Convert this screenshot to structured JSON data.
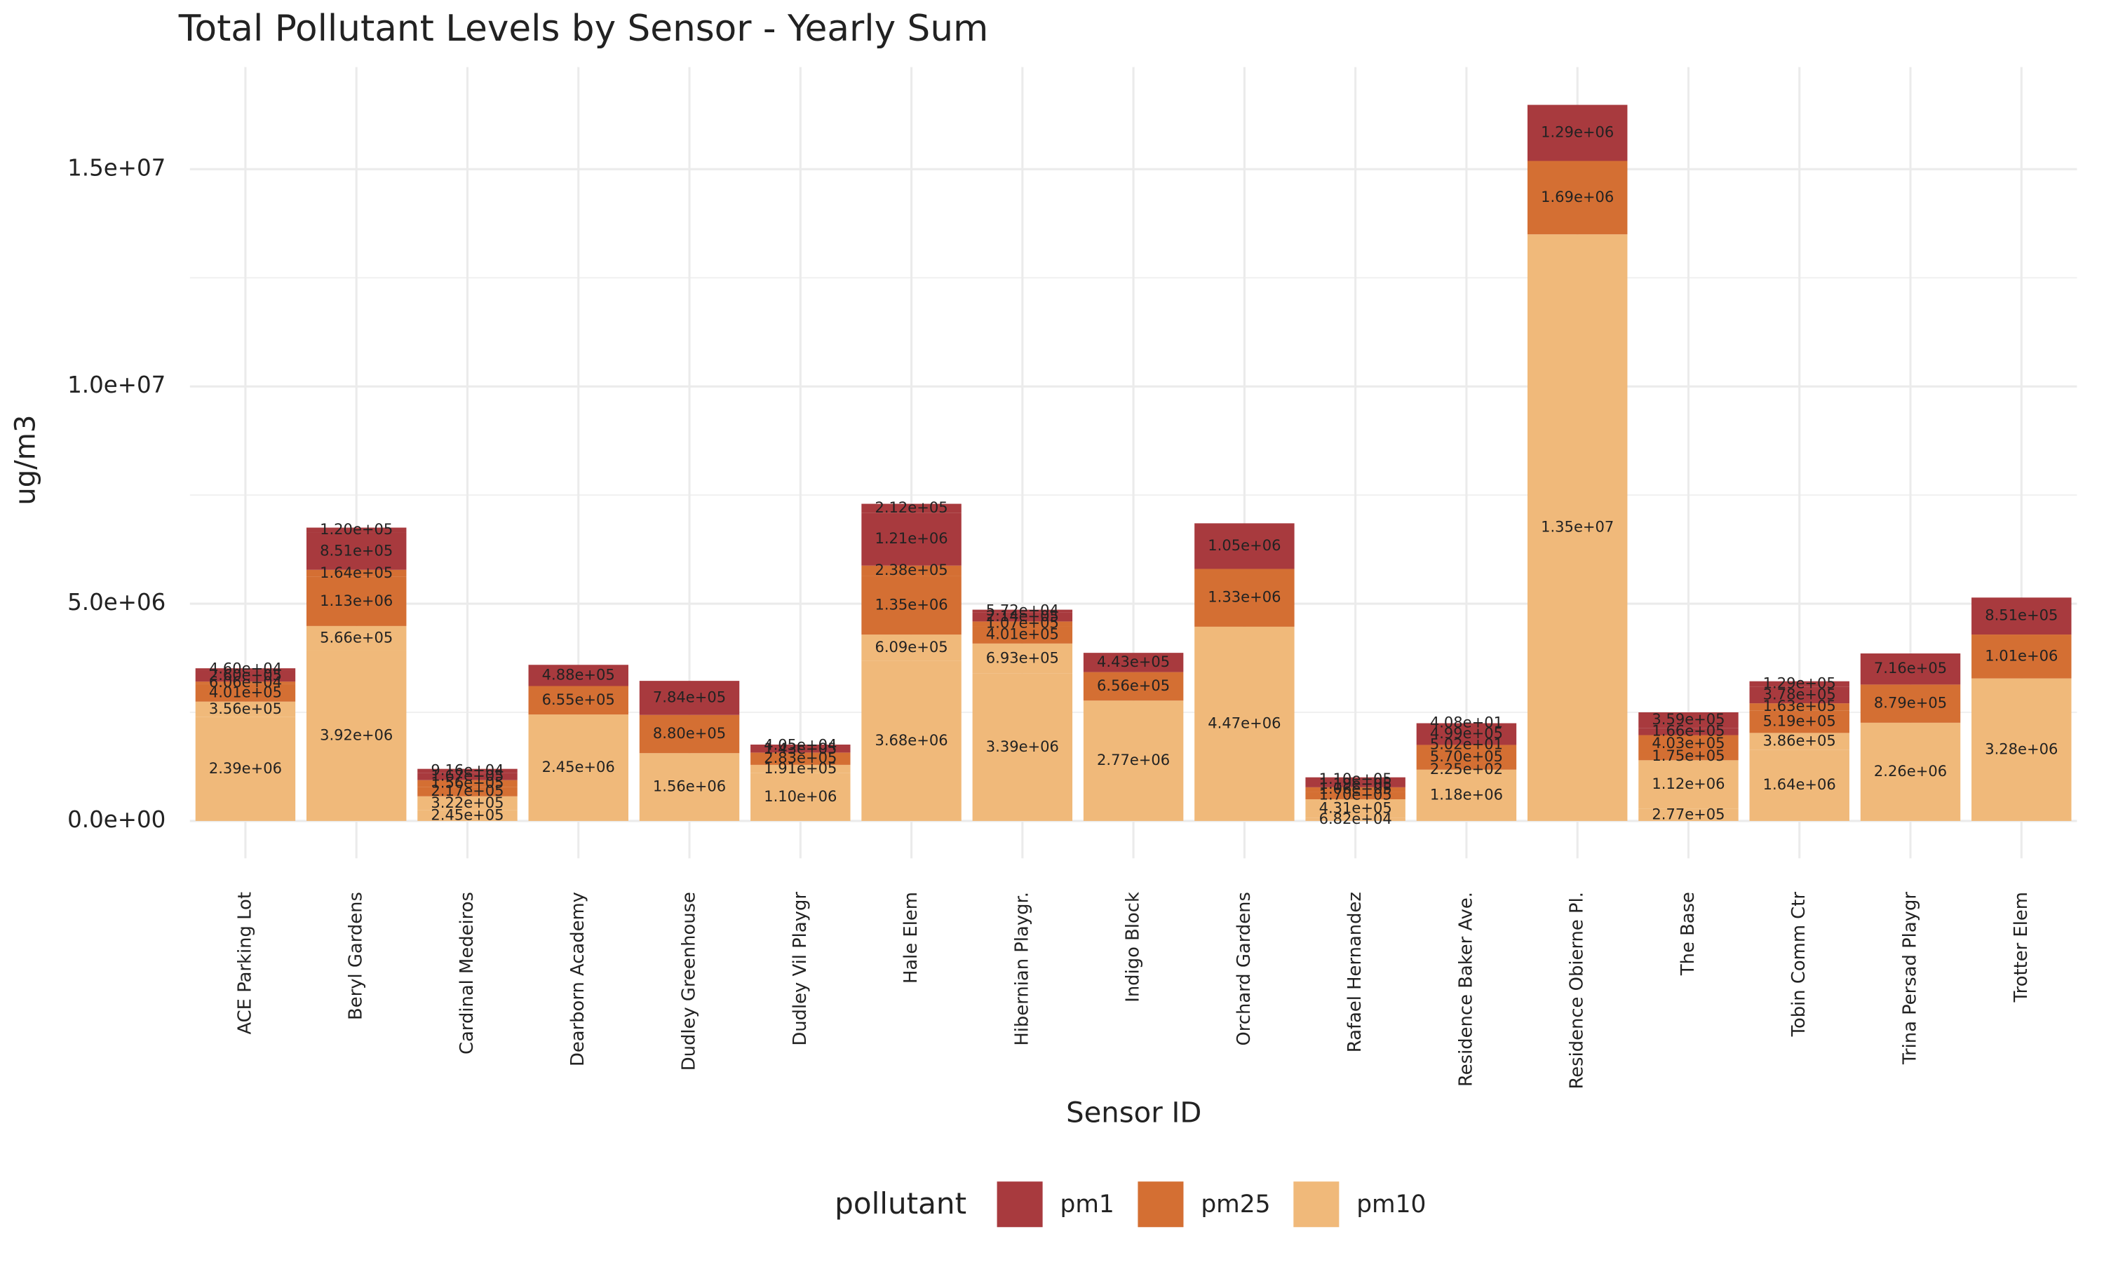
{
  "chart_data": {
    "type": "stacked_bar",
    "title": "Total Pollutant Levels by Sensor - Yearly Sum",
    "x_label": "Sensor ID",
    "y_label": "ug/m3",
    "legend_title": "pollutant",
    "series": [
      {
        "name": "pm1",
        "color": "#a83a3e"
      },
      {
        "name": "pm25",
        "color": "#d46f33"
      },
      {
        "name": "pm10",
        "color": "#f0b97a"
      }
    ],
    "categories": [
      "ACE Parking Lot",
      "Beryl Gardens",
      "Cardinal Medeiros",
      "Dearborn Academy",
      "Dudley Greenhouse",
      "Dudley Vil Playgr",
      "Hale Elem",
      "Hibernian Playgr.",
      "Indigo Block",
      "Orchard Gardens",
      "Rafael Hernandez",
      "Residence Baker Ave.",
      "Residence Obierne Pl.",
      "The Base",
      "Tobin Comm Ctr",
      "Trina Persad Playgr",
      "Trotter Elem"
    ],
    "stacks": [
      [
        {
          "pollutant": "pm10",
          "value": 2390000,
          "label": "2.39e+06"
        },
        {
          "pollutant": "pm10",
          "value": 356000,
          "label": "3.56e+05"
        },
        {
          "pollutant": "pm25",
          "value": 401000,
          "label": "4.01e+05"
        },
        {
          "pollutant": "pm25",
          "value": 60600,
          "label": "6.06e+04"
        },
        {
          "pollutant": "pm1",
          "value": 260000,
          "label": "2.60e+05"
        },
        {
          "pollutant": "pm1",
          "value": 46000,
          "label": "4.60e+04"
        }
      ],
      [
        {
          "pollutant": "pm10",
          "value": 3920000,
          "label": "3.92e+06"
        },
        {
          "pollutant": "pm10",
          "value": 566000,
          "label": "5.66e+05"
        },
        {
          "pollutant": "pm25",
          "value": 1130000,
          "label": "1.13e+06"
        },
        {
          "pollutant": "pm25",
          "value": 164000,
          "label": "1.64e+05"
        },
        {
          "pollutant": "pm1",
          "value": 851000,
          "label": "8.51e+05"
        },
        {
          "pollutant": "pm1",
          "value": 120000,
          "label": "1.20e+05"
        }
      ],
      [
        {
          "pollutant": "pm10",
          "value": 245000,
          "label": "2.45e+05"
        },
        {
          "pollutant": "pm10",
          "value": 322000,
          "label": "3.22e+05"
        },
        {
          "pollutant": "pm25",
          "value": 217000,
          "label": "2.17e+05"
        },
        {
          "pollutant": "pm25",
          "value": 156000,
          "label": "1.56e+05"
        },
        {
          "pollutant": "pm1",
          "value": 167000,
          "label": "1.67e+05"
        },
        {
          "pollutant": "pm1",
          "value": 91600,
          "label": "9.16e+04"
        }
      ],
      [
        {
          "pollutant": "pm10",
          "value": 2450000,
          "label": "2.45e+06"
        },
        {
          "pollutant": "pm25",
          "value": 655000,
          "label": "6.55e+05"
        },
        {
          "pollutant": "pm1",
          "value": 488000,
          "label": "4.88e+05"
        }
      ],
      [
        {
          "pollutant": "pm10",
          "value": 1560000,
          "label": "1.56e+06"
        },
        {
          "pollutant": "pm25",
          "value": 880000,
          "label": "8.80e+05"
        },
        {
          "pollutant": "pm1",
          "value": 784000,
          "label": "7.84e+05"
        }
      ],
      [
        {
          "pollutant": "pm10",
          "value": 1100000,
          "label": "1.10e+06"
        },
        {
          "pollutant": "pm10",
          "value": 191000,
          "label": "1.91e+05"
        },
        {
          "pollutant": "pm25",
          "value": 283000,
          "label": "2.83e+05"
        },
        {
          "pollutant": "pm1",
          "value": 143000,
          "label": "1.43e+05"
        },
        {
          "pollutant": "pm1",
          "value": 40500,
          "label": "4.05e+04"
        }
      ],
      [
        {
          "pollutant": "pm10",
          "value": 3680000,
          "label": "3.68e+06"
        },
        {
          "pollutant": "pm10",
          "value": 609000,
          "label": "6.09e+05"
        },
        {
          "pollutant": "pm25",
          "value": 1350000,
          "label": "1.35e+06"
        },
        {
          "pollutant": "pm25",
          "value": 238000,
          "label": "2.38e+05"
        },
        {
          "pollutant": "pm1",
          "value": 1210000,
          "label": "1.21e+06"
        },
        {
          "pollutant": "pm1",
          "value": 212000,
          "label": "2.12e+05"
        }
      ],
      [
        {
          "pollutant": "pm10",
          "value": 3390000,
          "label": "3.39e+06"
        },
        {
          "pollutant": "pm10",
          "value": 693000,
          "label": "6.93e+05"
        },
        {
          "pollutant": "pm25",
          "value": 401000,
          "label": "4.01e+05"
        },
        {
          "pollutant": "pm25",
          "value": 107000,
          "label": "1.07e+05"
        },
        {
          "pollutant": "pm1",
          "value": 214000,
          "label": "2.14e+05"
        },
        {
          "pollutant": "pm1",
          "value": 57200,
          "label": "5.72e+04"
        }
      ],
      [
        {
          "pollutant": "pm10",
          "value": 2770000,
          "label": "2.77e+06"
        },
        {
          "pollutant": "pm25",
          "value": 656000,
          "label": "6.56e+05"
        },
        {
          "pollutant": "pm1",
          "value": 443000,
          "label": "4.43e+05"
        }
      ],
      [
        {
          "pollutant": "pm10",
          "value": 4470000,
          "label": "4.47e+06"
        },
        {
          "pollutant": "pm25",
          "value": 1330000,
          "label": "1.33e+06"
        },
        {
          "pollutant": "pm1",
          "value": 1050000,
          "label": "1.05e+06"
        }
      ],
      [
        {
          "pollutant": "pm10",
          "value": 68200,
          "label": "6.82e+04"
        },
        {
          "pollutant": "pm10",
          "value": 431000,
          "label": "4.31e+05"
        },
        {
          "pollutant": "pm25",
          "value": 170000,
          "label": "1.70e+05"
        },
        {
          "pollutant": "pm25",
          "value": 106000,
          "label": "1.06e+05"
        },
        {
          "pollutant": "pm1",
          "value": 119000,
          "label": "1.19e+05"
        },
        {
          "pollutant": "pm1",
          "value": 110000,
          "label": "1.10e+05"
        }
      ],
      [
        {
          "pollutant": "pm10",
          "value": 1180000,
          "label": "1.18e+06"
        },
        {
          "pollutant": "pm10",
          "value": 225,
          "label": "2.25e+02"
        },
        {
          "pollutant": "pm25",
          "value": 570000,
          "label": "5.70e+05"
        },
        {
          "pollutant": "pm25",
          "value": 50.2,
          "label": "5.02e+01"
        },
        {
          "pollutant": "pm1",
          "value": 499000,
          "label": "4.99e+05"
        },
        {
          "pollutant": "pm1",
          "value": 40.8,
          "label": "4.08e+01"
        }
      ],
      [
        {
          "pollutant": "pm10",
          "value": 13500000,
          "label": "1.35e+07"
        },
        {
          "pollutant": "pm25",
          "value": 1690000,
          "label": "1.69e+06"
        },
        {
          "pollutant": "pm1",
          "value": 1290000,
          "label": "1.29e+06"
        }
      ],
      [
        {
          "pollutant": "pm10",
          "value": 277000,
          "label": "2.77e+05"
        },
        {
          "pollutant": "pm10",
          "value": 1120000,
          "label": "1.12e+06"
        },
        {
          "pollutant": "pm25",
          "value": 175000,
          "label": "1.75e+05"
        },
        {
          "pollutant": "pm25",
          "value": 403000,
          "label": "4.03e+05"
        },
        {
          "pollutant": "pm1",
          "value": 166000,
          "label": "1.66e+05"
        },
        {
          "pollutant": "pm1",
          "value": 359000,
          "label": "3.59e+05"
        }
      ],
      [
        {
          "pollutant": "pm10",
          "value": 1640000,
          "label": "1.64e+06"
        },
        {
          "pollutant": "pm10",
          "value": 386000,
          "label": "3.86e+05"
        },
        {
          "pollutant": "pm25",
          "value": 519000,
          "label": "5.19e+05"
        },
        {
          "pollutant": "pm25",
          "value": 163000,
          "label": "1.63e+05"
        },
        {
          "pollutant": "pm1",
          "value": 378000,
          "label": "3.78e+05"
        },
        {
          "pollutant": "pm1",
          "value": 129000,
          "label": "1.29e+05"
        }
      ],
      [
        {
          "pollutant": "pm10",
          "value": 2260000,
          "label": "2.26e+06"
        },
        {
          "pollutant": "pm25",
          "value": 879000,
          "label": "8.79e+05"
        },
        {
          "pollutant": "pm1",
          "value": 716000,
          "label": "7.16e+05"
        }
      ],
      [
        {
          "pollutant": "pm10",
          "value": 3280000,
          "label": "3.28e+06"
        },
        {
          "pollutant": "pm25",
          "value": 1010000,
          "label": "1.01e+06"
        },
        {
          "pollutant": "pm1",
          "value": 851000,
          "label": "8.51e+05"
        }
      ]
    ],
    "ylim": [
      -860000,
      17350000
    ],
    "yticks": [
      {
        "value": 0,
        "label": "0.0e+00"
      },
      {
        "value": 5000000,
        "label": "5.0e+06"
      },
      {
        "value": 10000000,
        "label": "1.0e+07"
      },
      {
        "value": 15000000,
        "label": "1.5e+07"
      }
    ],
    "y_minor_ticks": [
      2500000,
      7500000,
      12500000
    ],
    "grid": true
  }
}
